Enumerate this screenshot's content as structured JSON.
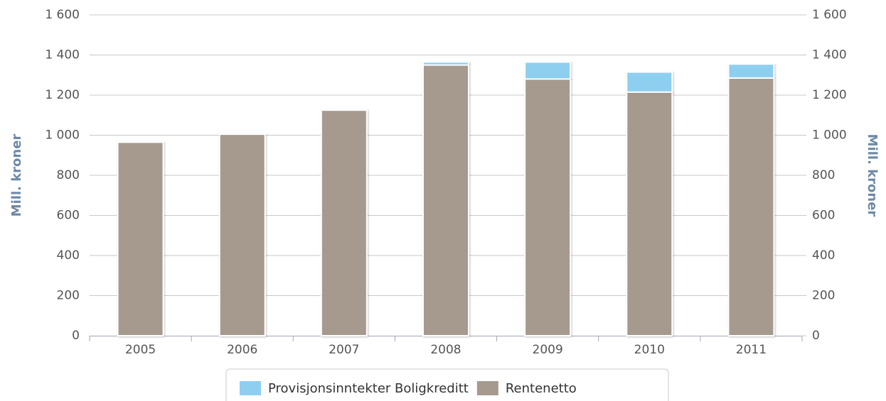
{
  "chart_data": {
    "type": "stacked_bar",
    "y_label": "Mill. kroner",
    "y2_label": "Mill. kroner",
    "categories": [
      "2005",
      "2006",
      "2007",
      "2008",
      "2009",
      "2010",
      "2011"
    ],
    "series": [
      {
        "name": "Provisjonsinntekter Boligkreditt",
        "color": "#8ecff0",
        "values": [
          0,
          0,
          0,
          15,
          85,
          100,
          70
        ]
      },
      {
        "name": "Rentenetto",
        "color": "#a69a8f",
        "values": [
          965,
          1005,
          1125,
          1350,
          1280,
          1215,
          1285
        ]
      }
    ],
    "ylim": [
      0,
      1600
    ],
    "yticks": [
      0,
      200,
      400,
      600,
      800,
      {
        "value": 1000,
        "label": "1 000"
      },
      {
        "value": 1200,
        "label": "1 200"
      },
      {
        "value": 1400,
        "label": "1 400"
      },
      {
        "value": 1600,
        "label": "1 600"
      }
    ],
    "y2lim": [
      0,
      1600
    ],
    "y2ticks": [
      0,
      200,
      400,
      600,
      800,
      {
        "value": 1000,
        "label": "1 000"
      },
      {
        "value": 1200,
        "label": "1 200"
      },
      {
        "value": 1400,
        "label": "1 400"
      },
      {
        "value": 1600,
        "label": "1 600"
      }
    ],
    "grid": true,
    "legend": "bottom"
  }
}
